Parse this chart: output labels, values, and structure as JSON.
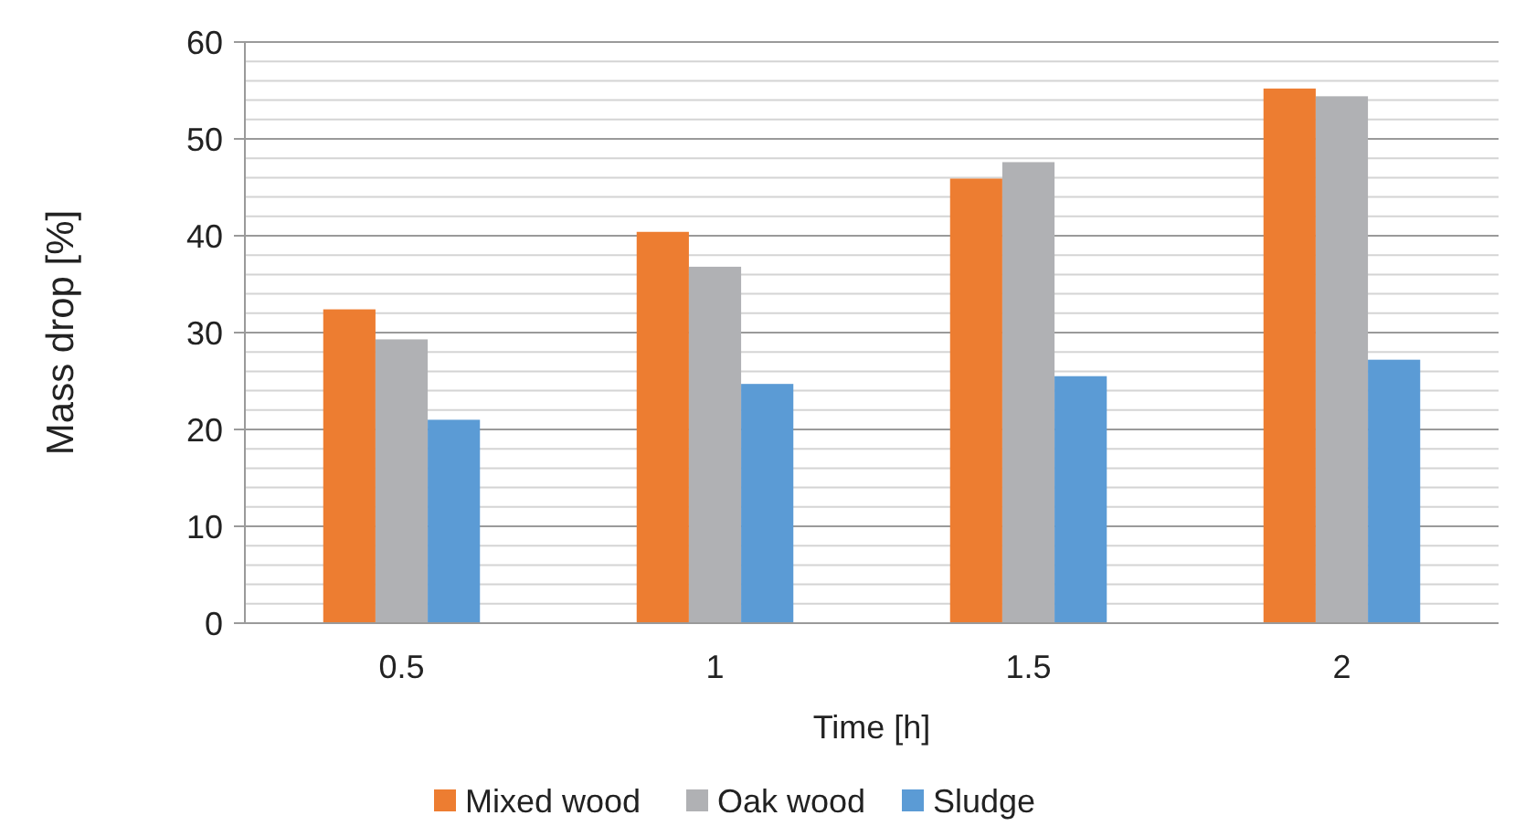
{
  "chart_data": {
    "type": "bar",
    "xlabel": "Time [h]",
    "ylabel": "Mass drop [%]",
    "categories": [
      "0.5",
      "1",
      "1.5",
      "2"
    ],
    "series": [
      {
        "name": "Mixed wood",
        "color": "#ed7d31",
        "values": [
          32.4,
          40.4,
          45.9,
          55.2
        ]
      },
      {
        "name": "Oak wood",
        "color": "#b0b1b4",
        "values": [
          29.3,
          36.8,
          47.6,
          54.4
        ]
      },
      {
        "name": "Sludge",
        "color": "#5b9bd5",
        "values": [
          21.0,
          24.7,
          25.5,
          27.2
        ]
      }
    ],
    "ylim": [
      0,
      60
    ],
    "yticks": [
      0,
      {
        "value": 2,
        "label": null
      },
      {
        "value": 4,
        "label": null
      },
      {
        "value": 6,
        "label": null
      },
      {
        "value": 8,
        "label": null
      },
      10,
      {
        "value": 12,
        "label": null
      },
      {
        "value": 14,
        "label": null
      },
      {
        "value": 16,
        "label": null
      },
      {
        "value": 18,
        "label": null
      },
      20,
      {
        "value": 22,
        "label": null
      },
      {
        "value": 24,
        "label": null
      },
      {
        "value": 26,
        "label": null
      },
      {
        "value": 28,
        "label": null
      },
      30,
      {
        "value": 32,
        "label": null
      },
      {
        "value": 34,
        "label": null
      },
      {
        "value": 36,
        "label": null
      },
      {
        "value": 38,
        "label": null
      },
      40,
      {
        "value": 42,
        "label": null
      },
      {
        "value": 44,
        "label": null
      },
      {
        "value": 46,
        "label": null
      },
      {
        "value": 48,
        "label": null
      },
      50,
      {
        "value": 52,
        "label": null
      },
      {
        "value": 54,
        "label": null
      },
      {
        "value": 56,
        "label": null
      },
      {
        "value": 58,
        "label": null
      },
      60
    ],
    "grid": "y",
    "legend": "bottom"
  }
}
